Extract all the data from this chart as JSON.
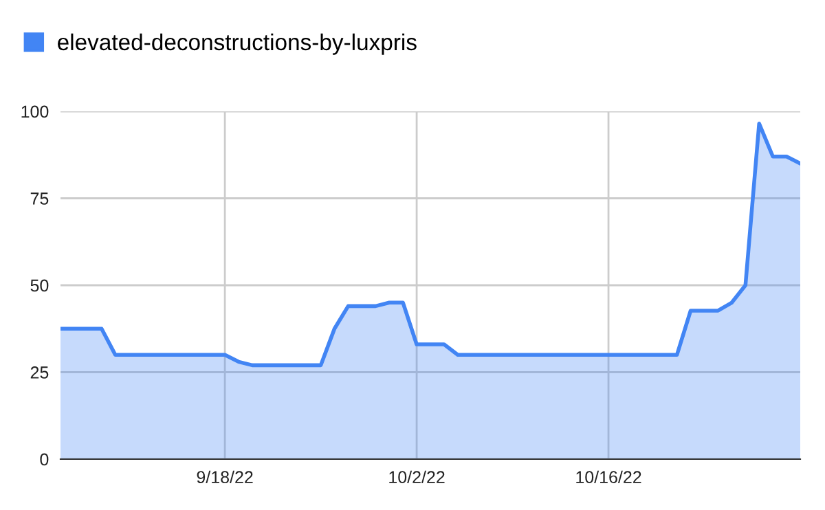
{
  "chart_data": {
    "type": "area",
    "x": [
      "2022-09-06",
      "2022-09-09",
      "2022-09-10",
      "2022-09-18",
      "2022-09-19",
      "2022-09-20",
      "2022-09-25",
      "2022-09-26",
      "2022-09-27",
      "2022-09-29",
      "2022-09-30",
      "2022-10-01",
      "2022-10-02",
      "2022-10-04",
      "2022-10-05",
      "2022-10-21",
      "2022-10-22",
      "2022-10-24",
      "2022-10-25",
      "2022-10-26",
      "2022-10-27",
      "2022-10-28",
      "2022-10-29",
      "2022-10-30"
    ],
    "series": [
      {
        "name": "elevated-deconstructions-by-luxpris",
        "color": "#4285f4",
        "values": [
          37.5,
          37.5,
          30,
          30,
          28,
          27,
          27,
          37.5,
          44,
          44,
          45,
          45,
          33,
          33,
          30,
          30,
          42.7,
          42.7,
          45,
          50,
          96.5,
          87,
          87,
          85
        ]
      }
    ],
    "xlim": [
      "2022-09-06",
      "2022-10-30"
    ],
    "xticks": [
      {
        "value": "2022-09-18",
        "label": "9/18/22"
      },
      {
        "value": "2022-10-02",
        "label": "10/2/22"
      },
      {
        "value": "2022-10-16",
        "label": "10/16/22"
      }
    ],
    "ylim": [
      0,
      100
    ],
    "yticks": [
      0,
      25,
      50,
      75,
      100
    ],
    "grid": true,
    "legend": "top left"
  }
}
